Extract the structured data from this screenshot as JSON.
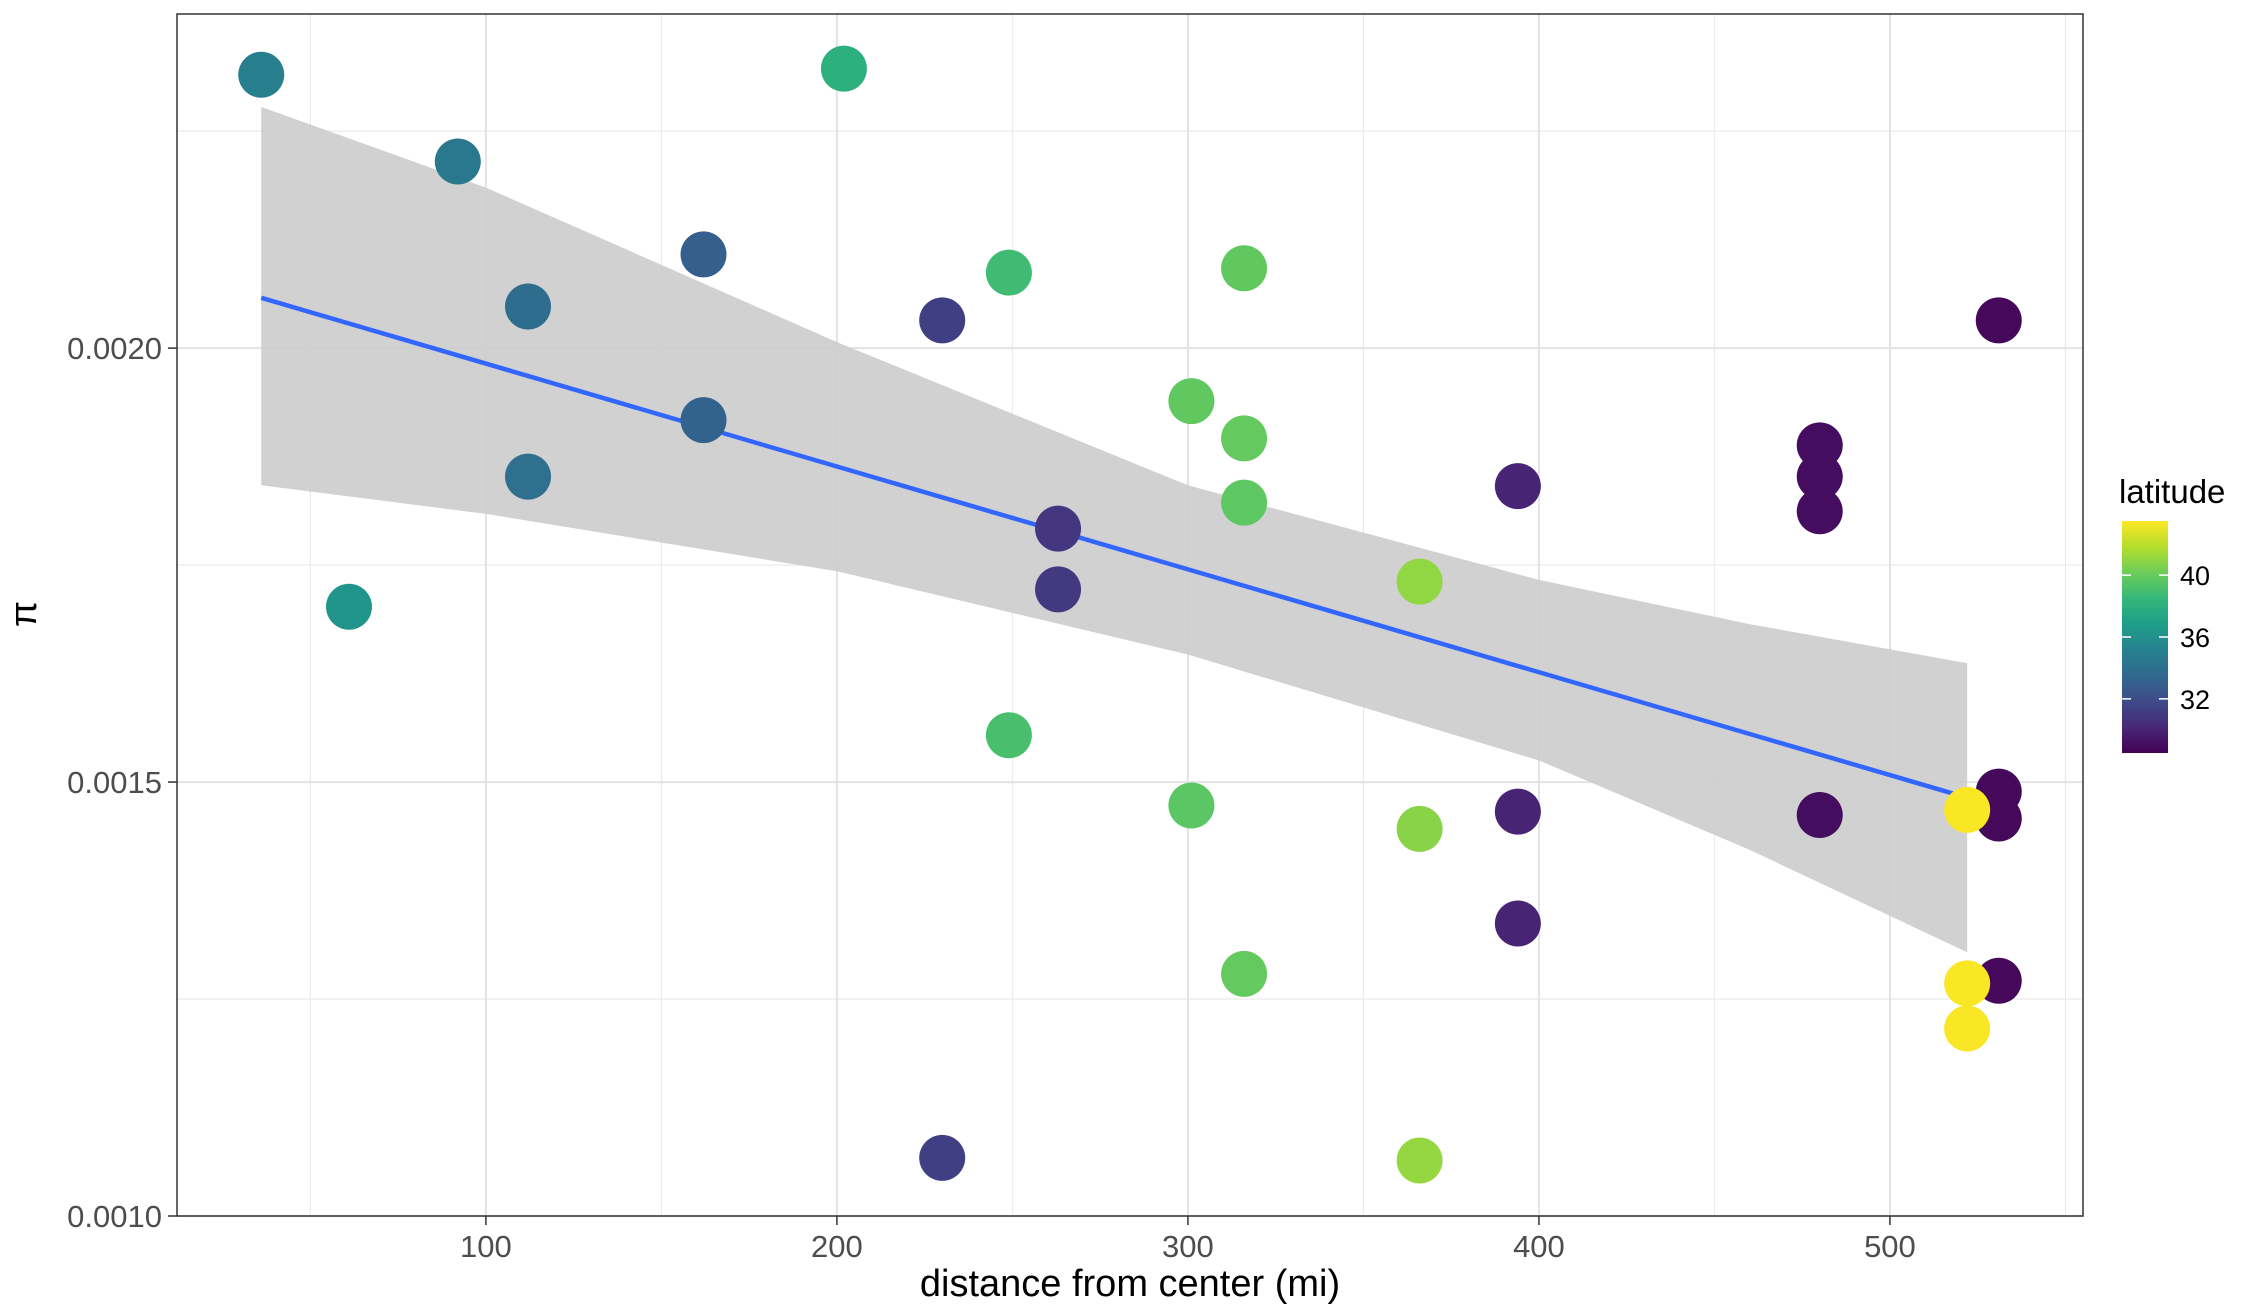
{
  "chart_data": {
    "type": "scatter",
    "title": "",
    "xlabel": "distance from center (mi)",
    "ylabel": "π",
    "xlim": [
      12,
      555
    ],
    "ylim": [
      0.001,
      0.002385
    ],
    "x_ticks": [
      100,
      200,
      300,
      400,
      500
    ],
    "x_tick_labels": [
      "100",
      "200",
      "300",
      "400",
      "500"
    ],
    "y_ticks": [
      0.001,
      0.0015,
      0.002
    ],
    "y_tick_labels": [
      "0.0010",
      "0.0015",
      "0.0020"
    ],
    "x_minor_ticks": [
      50,
      150,
      250,
      350,
      450,
      550
    ],
    "y_minor_ticks": [
      0.00125,
      0.00175,
      0.00225
    ],
    "grid": true,
    "legend": {
      "title": "latitude",
      "position": "right",
      "labels": [
        "40",
        "36",
        "32"
      ],
      "label_values": [
        40,
        36,
        32
      ],
      "range": [
        28.5,
        43.5
      ],
      "palette": [
        "#440154",
        "#482878",
        "#3E4A89",
        "#31688E",
        "#26828E",
        "#1F9E89",
        "#35B779",
        "#6DCD59",
        "#B4DE2C",
        "#FDE725"
      ]
    },
    "points": [
      {
        "x": 36,
        "y": 0.002315,
        "latitude": 35.0
      },
      {
        "x": 61,
        "y": 0.001702,
        "latitude": 36.3
      },
      {
        "x": 92,
        "y": 0.002215,
        "latitude": 34.5
      },
      {
        "x": 112,
        "y": 0.002048,
        "latitude": 33.8
      },
      {
        "x": 112,
        "y": 0.001852,
        "latitude": 34.0
      },
      {
        "x": 162,
        "y": 0.002108,
        "latitude": 33.0
      },
      {
        "x": 162,
        "y": 0.001917,
        "latitude": 33.2
      },
      {
        "x": 202,
        "y": 0.002322,
        "latitude": 38.0
      },
      {
        "x": 230,
        "y": 0.002032,
        "latitude": 31.3
      },
      {
        "x": 230,
        "y": 0.001067,
        "latitude": 31.3
      },
      {
        "x": 249,
        "y": 0.002087,
        "latitude": 38.8
      },
      {
        "x": 249,
        "y": 0.001554,
        "latitude": 39.1
      },
      {
        "x": 263,
        "y": 0.001792,
        "latitude": 30.9
      },
      {
        "x": 263,
        "y": 0.001722,
        "latitude": 31.0
      },
      {
        "x": 301,
        "y": 0.001939,
        "latitude": 39.8
      },
      {
        "x": 301,
        "y": 0.001473,
        "latitude": 39.6
      },
      {
        "x": 316,
        "y": 0.002092,
        "latitude": 39.8
      },
      {
        "x": 316,
        "y": 0.001896,
        "latitude": 39.9
      },
      {
        "x": 316,
        "y": 0.001822,
        "latitude": 39.7
      },
      {
        "x": 316,
        "y": 0.001279,
        "latitude": 39.9
      },
      {
        "x": 366,
        "y": 0.001731,
        "latitude": 41.0
      },
      {
        "x": 366,
        "y": 0.001446,
        "latitude": 40.8
      },
      {
        "x": 366,
        "y": 0.001064,
        "latitude": 41.1
      },
      {
        "x": 394,
        "y": 0.001841,
        "latitude": 30.0
      },
      {
        "x": 394,
        "y": 0.001466,
        "latitude": 30.0
      },
      {
        "x": 394,
        "y": 0.001337,
        "latitude": 30.0
      },
      {
        "x": 480,
        "y": 0.001888,
        "latitude": 29.0
      },
      {
        "x": 480,
        "y": 0.001852,
        "latitude": 29.0
      },
      {
        "x": 480,
        "y": 0.001812,
        "latitude": 29.0
      },
      {
        "x": 480,
        "y": 0.001462,
        "latitude": 29.0
      },
      {
        "x": 531,
        "y": 0.002032,
        "latitude": 28.8
      },
      {
        "x": 531,
        "y": 0.001489,
        "latitude": 28.8
      },
      {
        "x": 531,
        "y": 0.001458,
        "latitude": 28.8
      },
      {
        "x": 531,
        "y": 0.001271,
        "latitude": 28.8
      },
      {
        "x": 522,
        "y": 0.001468,
        "latitude": 43.4
      },
      {
        "x": 522,
        "y": 0.001268,
        "latitude": 43.4
      },
      {
        "x": 522,
        "y": 0.001216,
        "latitude": 43.4
      }
    ],
    "fit": {
      "method": "lm",
      "color": "#3366FF",
      "band_color": "#CCCCCC",
      "line": [
        [
          36,
          0.002058
        ],
        [
          522,
          0.001482
        ]
      ],
      "band_upper": [
        [
          36,
          0.002278
        ],
        [
          100,
          0.002185
        ],
        [
          200,
          0.002007
        ],
        [
          300,
          0.001842
        ],
        [
          400,
          0.001733
        ],
        [
          460,
          0.001682
        ],
        [
          522,
          0.001637
        ]
      ],
      "band_lower": [
        [
          36,
          0.001842
        ],
        [
          100,
          0.001809
        ],
        [
          200,
          0.001743
        ],
        [
          300,
          0.001647
        ],
        [
          400,
          0.001525
        ],
        [
          460,
          0.001422
        ],
        [
          522,
          0.001304
        ]
      ]
    }
  }
}
